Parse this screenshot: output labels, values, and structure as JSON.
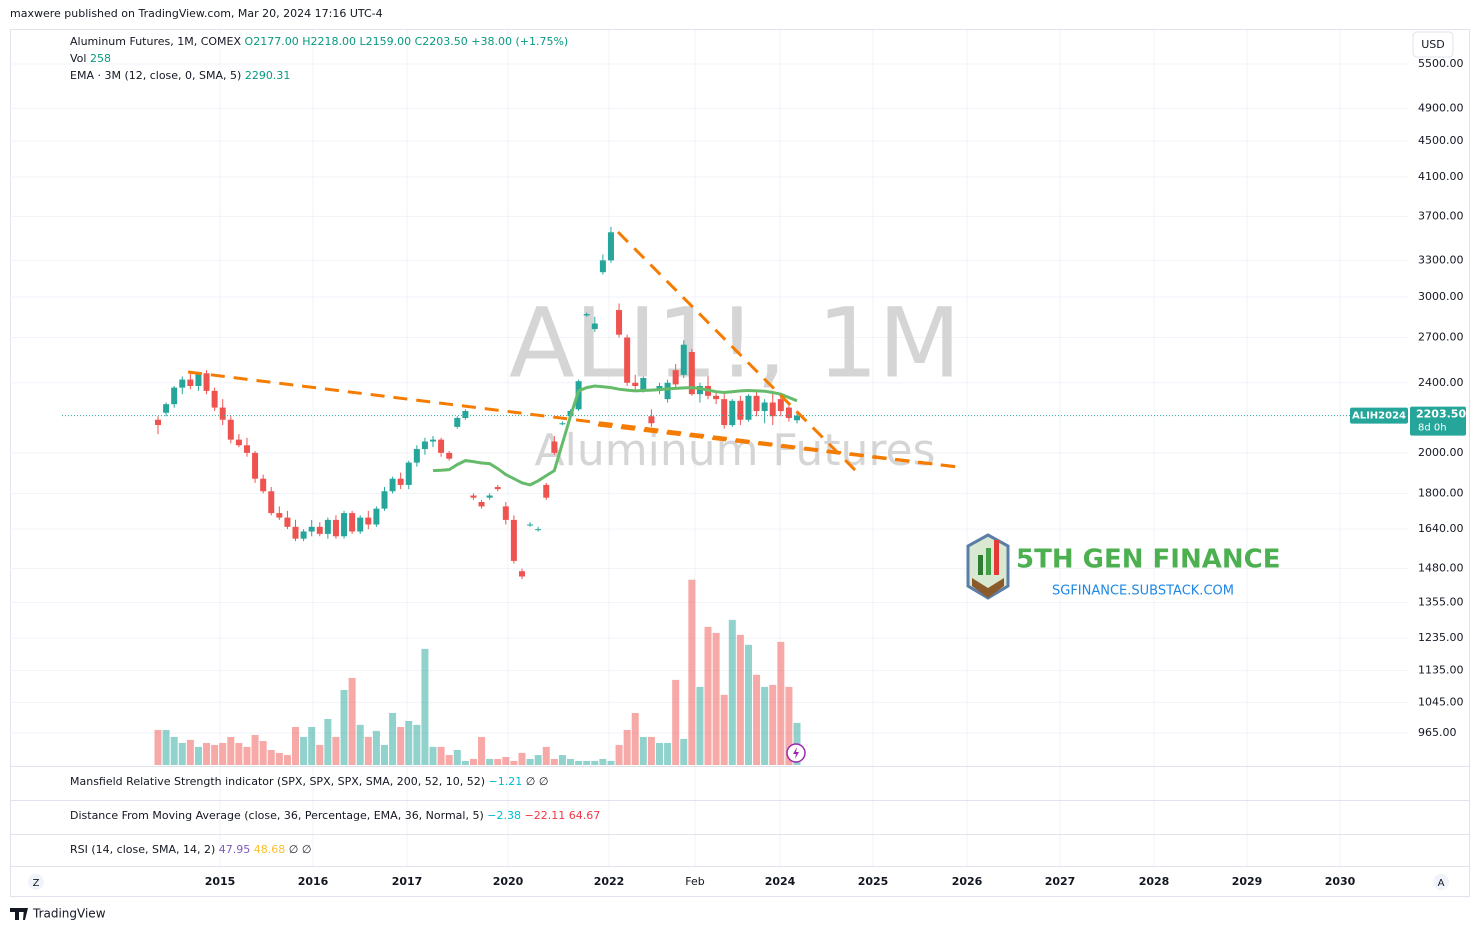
{
  "header": {
    "published": "maxwere published on TradingView.com, Mar 20, 2024 17:16 UTC-4",
    "currency": "USD",
    "brand": "TradingView",
    "z_button": "Z",
    "a_button": "A"
  },
  "legend": {
    "symbol": "Aluminum Futures, 1M, COMEX",
    "open": "O2177.00",
    "high": "H2218.00",
    "low": "L2159.00",
    "close": "C2203.50",
    "change": "+38.00 (+1.75%)",
    "vol_name": "Vol",
    "vol_value": "258",
    "ema_name": "EMA · 3M (12, close, 0, SMA, 5)",
    "ema_value": "2290.31"
  },
  "watermark": {
    "symbol": "ALI1!, 1M",
    "name": "Aluminum Futures"
  },
  "logo": {
    "title": "5TH GEN FINANCE",
    "url": "SGFINANCE.SUBSTACK.COM"
  },
  "price_tag": {
    "symbol": "ALIH2024",
    "price": "2203.50",
    "countdown": "8d 0h"
  },
  "panes": [
    {
      "name": "Mansfield Relative Strength indicator (SPX, SPX, SPX, SMA, 200, 52, 10, 52)",
      "values": [
        "−1.21",
        "∅",
        "∅"
      ],
      "colors": [
        "#00bcd4",
        "#131722",
        "#131722"
      ]
    },
    {
      "name": "Distance From Moving Average (close, 36, Percentage, EMA, 36, Normal, 5)",
      "values": [
        "−2.38",
        "−22.11",
        "64.67"
      ],
      "colors": [
        "#00bcd4",
        "#f23645",
        "#f23645"
      ]
    },
    {
      "name": "RSI (14, close, SMA, 14, 2)",
      "values": [
        "47.95",
        "48.68",
        "∅",
        "∅"
      ],
      "colors": [
        "#7e57c2",
        "#fbc02d",
        "#131722",
        "#131722"
      ]
    }
  ],
  "chart_data": {
    "type": "candlestick",
    "log_scale": true,
    "grid": true,
    "x_labels": [
      "2015",
      "2016",
      "2017",
      "2020",
      "2022",
      "Feb",
      "2024",
      "2025",
      "2026",
      "2027",
      "2028",
      "2029",
      "2030"
    ],
    "ylim": [
      888,
      5854
    ],
    "yticks": [
      {
        "value": 5500,
        "label": "5500.00"
      },
      {
        "value": 4900,
        "label": "4900.00"
      },
      {
        "value": 4500,
        "label": "4500.00"
      },
      {
        "value": 4100,
        "label": "4100.00"
      },
      {
        "value": 3700,
        "label": "3700.00"
      },
      {
        "value": 3300,
        "label": "3300.00"
      },
      {
        "value": 3000,
        "label": "3000.00"
      },
      {
        "value": 2700,
        "label": "2700.00"
      },
      {
        "value": 2400,
        "label": "2400.00"
      },
      {
        "value": 2000,
        "label": "2000.00"
      },
      {
        "value": 1800,
        "label": "1800.00"
      },
      {
        "value": 1640,
        "label": "1640.00"
      },
      {
        "value": 1480,
        "label": "1480.00"
      },
      {
        "value": 1355,
        "label": "1355.00"
      },
      {
        "value": 1235,
        "label": "1235.00"
      },
      {
        "value": 1135,
        "label": "1135.00"
      },
      {
        "value": 1045,
        "label": "1045.00"
      },
      {
        "value": 965,
        "label": "965.00"
      }
    ],
    "up_color": "#26a69a",
    "down_color": "#ef5350",
    "ema_color": "#66bb6a",
    "last_price": 2203.5,
    "candles": [
      [
        2180,
        2200,
        2100,
        2150
      ],
      [
        2220,
        2280,
        2200,
        2270
      ],
      [
        2270,
        2380,
        2250,
        2370
      ],
      [
        2370,
        2440,
        2330,
        2420
      ],
      [
        2420,
        2470,
        2360,
        2380
      ],
      [
        2380,
        2470,
        2350,
        2460
      ],
      [
        2460,
        2480,
        2330,
        2350
      ],
      [
        2350,
        2370,
        2230,
        2250
      ],
      [
        2250,
        2300,
        2150,
        2180
      ],
      [
        2180,
        2200,
        2050,
        2070
      ],
      [
        2070,
        2100,
        2030,
        2040
      ],
      [
        2040,
        2080,
        1980,
        2000
      ],
      [
        2000,
        2010,
        1850,
        1870
      ],
      [
        1870,
        1890,
        1800,
        1810
      ],
      [
        1810,
        1830,
        1700,
        1710
      ],
      [
        1710,
        1740,
        1680,
        1690
      ],
      [
        1690,
        1720,
        1640,
        1650
      ],
      [
        1650,
        1680,
        1590,
        1600
      ],
      [
        1600,
        1640,
        1590,
        1630
      ],
      [
        1630,
        1680,
        1610,
        1650
      ],
      [
        1650,
        1670,
        1610,
        1620
      ],
      [
        1620,
        1690,
        1600,
        1680
      ],
      [
        1680,
        1700,
        1600,
        1610
      ],
      [
        1610,
        1720,
        1600,
        1710
      ],
      [
        1710,
        1720,
        1620,
        1630
      ],
      [
        1630,
        1700,
        1620,
        1690
      ],
      [
        1690,
        1720,
        1640,
        1660
      ],
      [
        1660,
        1740,
        1650,
        1730
      ],
      [
        1730,
        1830,
        1720,
        1810
      ],
      [
        1810,
        1880,
        1800,
        1870
      ],
      [
        1870,
        1900,
        1820,
        1840
      ],
      [
        1840,
        1960,
        1820,
        1950
      ],
      [
        1950,
        2040,
        1930,
        2020
      ],
      [
        2020,
        2080,
        1990,
        2060
      ],
      [
        2060,
        2090,
        2030,
        2070
      ],
      [
        2070,
        2080,
        1980,
        2000
      ],
      [
        2000,
        2010,
        1960,
        1970
      ],
      [
        2140,
        2200,
        2130,
        2190
      ],
      [
        2190,
        2240,
        2180,
        2230
      ],
      [
        1790,
        1800,
        1770,
        1780
      ],
      [
        1760,
        1770,
        1730,
        1740
      ],
      [
        1780,
        1800,
        1770,
        1790
      ],
      [
        1830,
        1840,
        1810,
        1820
      ],
      [
        1740,
        1760,
        1660,
        1680
      ],
      [
        1680,
        1700,
        1500,
        1510
      ],
      [
        1470,
        1480,
        1440,
        1450
      ],
      [
        1660,
        1670,
        1650,
        1660
      ],
      [
        1640,
        1650,
        1630,
        1640
      ],
      [
        1840,
        1850,
        1770,
        1780
      ],
      [
        2060,
        2090,
        1990,
        2000
      ],
      [
        2160,
        2170,
        2150,
        2160
      ],
      [
        2200,
        2240,
        2180,
        2230
      ],
      [
        2240,
        2420,
        2230,
        2410
      ],
      [
        2860,
        2880,
        2850,
        2870
      ],
      [
        2760,
        2850,
        2740,
        2800
      ],
      [
        3200,
        3350,
        3180,
        3300
      ],
      [
        3300,
        3600,
        3280,
        3550
      ],
      [
        2900,
        2950,
        2700,
        2720
      ],
      [
        2700,
        2720,
        2380,
        2400
      ],
      [
        2400,
        2450,
        2350,
        2380
      ],
      [
        2350,
        2440,
        2340,
        2430
      ],
      [
        2200,
        2240,
        2140,
        2160
      ],
      [
        2350,
        2400,
        2330,
        2380
      ],
      [
        2300,
        2420,
        2280,
        2400
      ],
      [
        2480,
        2520,
        2370,
        2390
      ],
      [
        2450,
        2680,
        2430,
        2650
      ],
      [
        2600,
        2620,
        2320,
        2330
      ],
      [
        2330,
        2400,
        2280,
        2380
      ],
      [
        2380,
        2440,
        2300,
        2320
      ],
      [
        2320,
        2350,
        2270,
        2300
      ],
      [
        2300,
        2330,
        2130,
        2150
      ],
      [
        2150,
        2300,
        2140,
        2290
      ],
      [
        2290,
        2320,
        2150,
        2180
      ],
      [
        2180,
        2330,
        2170,
        2320
      ],
      [
        2320,
        2350,
        2200,
        2230
      ],
      [
        2230,
        2300,
        2160,
        2280
      ],
      [
        2280,
        2350,
        2150,
        2200
      ],
      [
        2300,
        2320,
        2200,
        2230
      ],
      [
        2250,
        2280,
        2170,
        2190
      ],
      [
        2177,
        2218,
        2159,
        2203.5
      ]
    ],
    "volume_lim": [
      0,
      1300
    ],
    "volumes": [
      215,
      215,
      172,
      135,
      154,
      111,
      135,
      123,
      135,
      172,
      135,
      111,
      184,
      147,
      92,
      74,
      61,
      233,
      172,
      233,
      123,
      282,
      172,
      460,
      534,
      246,
      172,
      209,
      123,
      319,
      233,
      270,
      246,
      712,
      111,
      111,
      61,
      92,
      25,
      37,
      172,
      37,
      37,
      49,
      25,
      74,
      37,
      61,
      111,
      37,
      61,
      37,
      25,
      25,
      25,
      37,
      25,
      123,
      215,
      319,
      172,
      172,
      135,
      135,
      522,
      160,
      1136,
      479,
      847,
      810,
      430,
      890,
      798,
      737,
      553,
      479,
      491,
      755,
      479,
      258
    ],
    "ema": [
      null,
      null,
      null,
      null,
      null,
      null,
      null,
      null,
      null,
      null,
      null,
      null,
      null,
      null,
      null,
      null,
      null,
      null,
      null,
      null,
      null,
      null,
      null,
      null,
      null,
      null,
      null,
      null,
      null,
      null,
      null,
      null,
      null,
      null,
      1910,
      1912,
      1915,
      1940,
      1960,
      1955,
      1948,
      1945,
      1920,
      1890,
      1870,
      1850,
      1840,
      1860,
      1885,
      1910,
      2050,
      2200,
      2350,
      2370,
      2380,
      2375,
      2370,
      2360,
      2355,
      2350,
      2352,
      2355,
      2358,
      2362,
      2365,
      2368,
      2370,
      2365,
      2355,
      2345,
      2340,
      2345,
      2350,
      2352,
      2350,
      2348,
      2340,
      2330,
      2310,
      2290.31
    ]
  }
}
